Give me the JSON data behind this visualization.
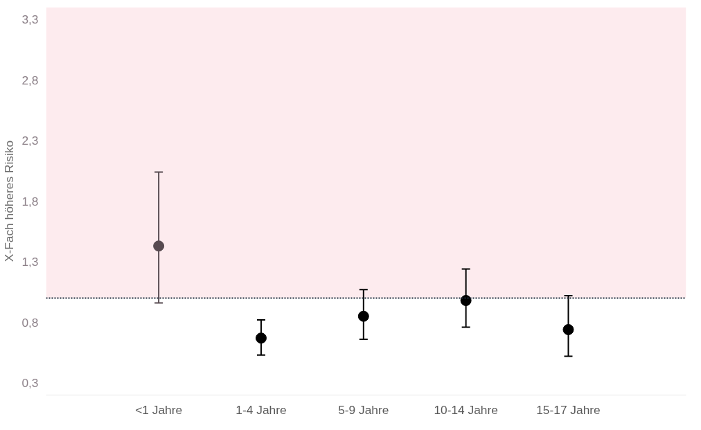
{
  "chart_data": {
    "type": "scatter",
    "ylabel": "X-Fach höheres Risiko",
    "categories": [
      "<1 Jahre",
      "1-4 Jahre",
      "5-9 Jahre",
      "10-14 Jahre",
      "15-17 Jahre"
    ],
    "values": [
      1.43,
      0.67,
      0.85,
      0.98,
      0.74
    ],
    "colors": [
      "#574a50",
      "#000000",
      "#000000",
      "#000000",
      "#000000"
    ],
    "errors": [
      [
        0.96,
        2.04
      ],
      [
        0.53,
        0.82
      ],
      [
        0.66,
        1.07
      ],
      [
        0.76,
        1.24
      ],
      [
        0.52,
        1.02
      ]
    ],
    "ylim": [
      0.2,
      3.4
    ],
    "yticks": [
      {
        "value": 0.3,
        "label": "0,3"
      },
      {
        "value": 0.8,
        "label": "0,8"
      },
      {
        "value": 1.3,
        "label": "1,3"
      },
      {
        "value": 1.8,
        "label": "1,8"
      },
      {
        "value": 2.3,
        "label": "2,3"
      },
      {
        "value": 2.8,
        "label": "2,8"
      },
      {
        "value": 3.3,
        "label": "3,3"
      }
    ],
    "ref_lines": [
      {
        "axis": "y",
        "value": 1.0,
        "color": "#1f2d3d",
        "line_style": "dotted"
      }
    ],
    "bands": [
      {
        "axis": "y",
        "from": 1.0,
        "to": 3.4,
        "color": "#fdebee"
      }
    ],
    "marker": "circle"
  }
}
